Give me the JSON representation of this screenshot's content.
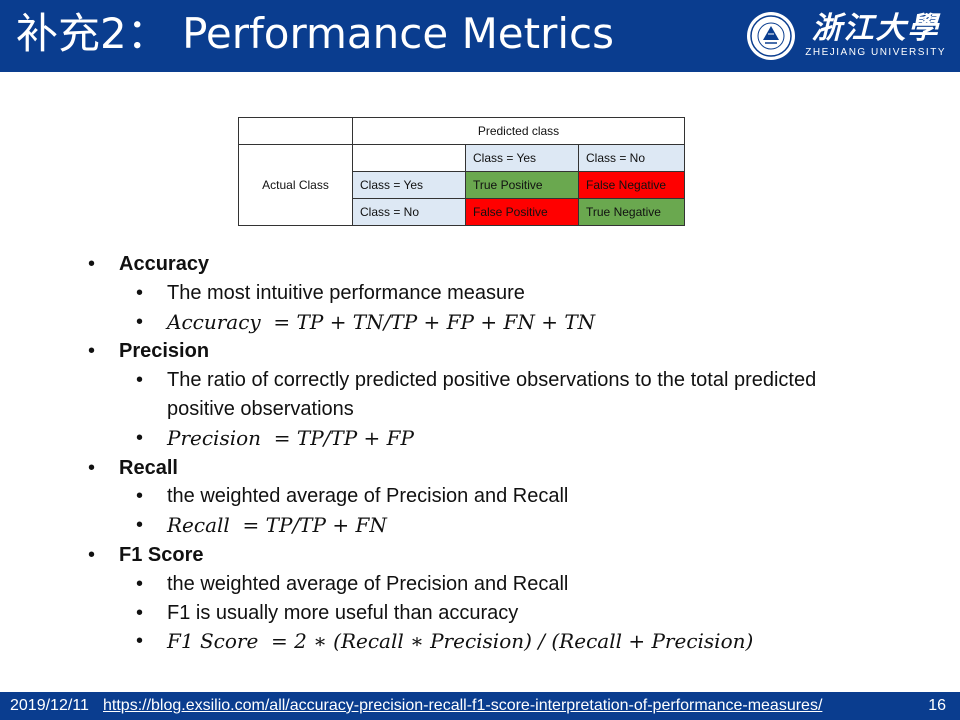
{
  "header": {
    "title": "补充2： Performance Metrics"
  },
  "logo": {
    "chinese": "浙江大學",
    "english": "ZHEJIANG UNIVERSITY"
  },
  "table": {
    "predicted_header": "Predicted class",
    "actual_header": "Actual Class",
    "col_yes": "Class = Yes",
    "col_no": "Class = No",
    "row_yes": "Class = Yes",
    "row_no": "Class = No",
    "tp": "True Positive",
    "fn": "False Negative",
    "fp": "False Positive",
    "tn": "True Negative"
  },
  "sections": {
    "accuracy": {
      "title": "Accuracy",
      "desc": "The most intuitive performance measure",
      "formula": "Accuracy  = TP + TN/TP + FP + FN + TN"
    },
    "precision": {
      "title": "Precision",
      "desc": "The ratio of correctly predicted positive observations to the total predicted positive observations",
      "formula": "Precision  = TP/TP + FP"
    },
    "recall": {
      "title": "Recall",
      "desc": "the weighted average of Precision and Recall",
      "formula": "Recall  = TP/TP + FN"
    },
    "f1": {
      "title": "F1 Score",
      "desc1": "the weighted average of Precision and Recall",
      "desc2": "F1 is usually more useful than accuracy",
      "formula": "F1 Score  = 2 ∗ (Recall ∗ Precision) / (Recall + Precision)"
    }
  },
  "footer": {
    "date": "2019/12/11",
    "link": "https://blog.exsilio.com/all/accuracy-precision-recall-f1-score-interpretation-of-performance-measures/",
    "page": "16"
  },
  "colors": {
    "brand": "#0a3d8f",
    "green": "#6aa84f",
    "red": "#ff0000",
    "light_blue": "#dde8f4"
  }
}
